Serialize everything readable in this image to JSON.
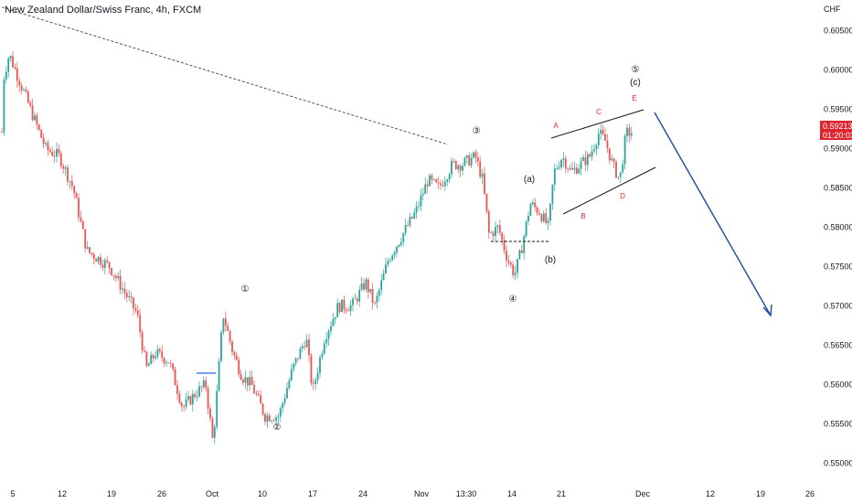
{
  "header": {
    "title": "New Zealand Dollar/Swiss Franc, 4h, FXCM",
    "currency": "CHF"
  },
  "price_tag": {
    "price": "0.59213",
    "countdown": "01:20:03"
  },
  "colors": {
    "up": "#26a69a",
    "down": "#ef5350",
    "arrow": "#1b4aa0",
    "price_tag": "#e0242b",
    "wave_label": "#131722",
    "abcde_label": "#e0242b"
  },
  "chart_data": {
    "type": "candlestick",
    "title": "New Zealand Dollar/Swiss Franc, 4h, FXCM",
    "y_unit": "CHF",
    "ylim": [
      0.5475,
      0.6075
    ],
    "grid": false,
    "x_ticks": [
      "5",
      "12",
      "19",
      "26",
      "Oct",
      "10",
      "17",
      "24",
      "Nov",
      "13:30",
      "14",
      "21",
      "Dec",
      "12",
      "19",
      "26"
    ],
    "y_ticks": [
      "0.60500",
      "0.60000",
      "0.59500",
      "0.59000",
      "0.58500",
      "0.58000",
      "0.57500",
      "0.57000",
      "0.56500",
      "0.56000",
      "0.55500",
      "0.55000"
    ],
    "last_price": 0.59213,
    "price_path": [
      {
        "x": "5",
        "y": 0.598
      },
      {
        "x": "12",
        "y": 0.588
      },
      {
        "x": "19",
        "y": 0.578
      },
      {
        "x": "26",
        "y": 0.563
      },
      {
        "x": "Oct",
        "y": 0.5525
      },
      {
        "x": "Oct",
        "y": 0.569
      },
      {
        "x": "10",
        "y": 0.5555
      },
      {
        "x": "17",
        "y": 0.562
      },
      {
        "x": "24",
        "y": 0.573
      },
      {
        "x": "Nov",
        "y": 0.584
      },
      {
        "x": "13:30",
        "y": 0.5895
      },
      {
        "x": "14",
        "y": 0.574
      },
      {
        "x": "21",
        "y": 0.584
      },
      {
        "x": "Dec",
        "y": 0.5921
      }
    ],
    "wave_labels": [
      "①",
      "②",
      "③",
      "④",
      "⑤",
      "(a)",
      "(b)",
      "(c)"
    ],
    "triangle_labels": [
      "A",
      "B",
      "C",
      "D",
      "E"
    ]
  }
}
